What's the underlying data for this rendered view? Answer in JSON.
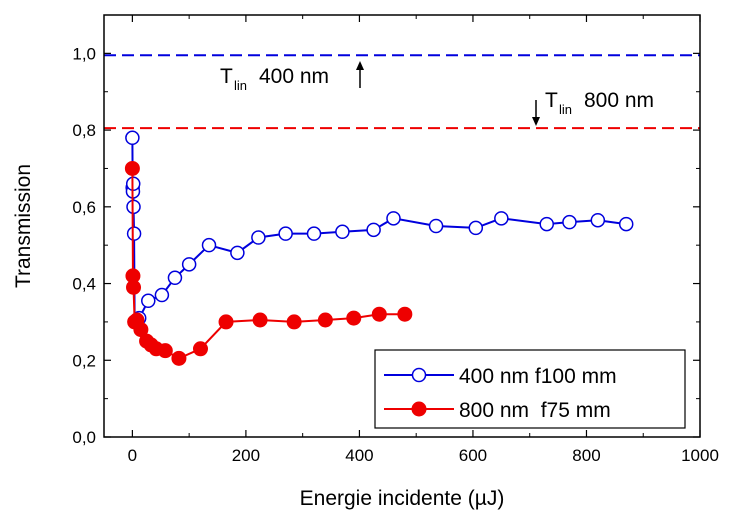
{
  "chart_data": {
    "type": "line",
    "xlabel": "Energie incidente (µJ)",
    "ylabel": "Transmission",
    "xlim": [
      -50,
      1000
    ],
    "ylim": [
      0.0,
      1.1
    ],
    "x_ticks": [
      0,
      200,
      400,
      600,
      800,
      1000
    ],
    "x_tick_labels": [
      "0",
      "200",
      "400",
      "600",
      "800",
      "1000"
    ],
    "y_ticks": [
      0.0,
      0.2,
      0.4,
      0.6,
      0.8,
      1.0
    ],
    "y_tick_labels": [
      "0,0",
      "0,2",
      "0,4",
      "0,6",
      "0,8",
      "1,0"
    ],
    "grid": false,
    "legend_position": "bottom-right",
    "series": [
      {
        "name": "400 nm f100 mm",
        "color": "#0000dd",
        "marker": "open-circle",
        "x": [
          0,
          0.5,
          1,
          1.5,
          2,
          3,
          4,
          12,
          28,
          52,
          75,
          100,
          135,
          185,
          222,
          270,
          320,
          370,
          425,
          460,
          535,
          605,
          650,
          730,
          770,
          820,
          870
        ],
        "y": [
          0.78,
          0.65,
          0.64,
          0.66,
          0.6,
          0.53,
          0.3,
          0.31,
          0.355,
          0.37,
          0.415,
          0.45,
          0.5,
          0.48,
          0.52,
          0.53,
          0.53,
          0.535,
          0.54,
          0.57,
          0.55,
          0.545,
          0.57,
          0.555,
          0.56,
          0.565,
          0.555
        ]
      },
      {
        "name": "800 nm  f75 mm",
        "color": "#ee0000",
        "marker": "filled-circle",
        "x": [
          0,
          1,
          2,
          4,
          8,
          15,
          25,
          33,
          42,
          58,
          82,
          120,
          165,
          225,
          285,
          340,
          390,
          435,
          480
        ],
        "y": [
          0.7,
          0.42,
          0.39,
          0.3,
          0.305,
          0.28,
          0.25,
          0.24,
          0.23,
          0.225,
          0.205,
          0.23,
          0.3,
          0.305,
          0.3,
          0.305,
          0.31,
          0.32,
          0.32
        ]
      }
    ],
    "reference_lines": [
      {
        "y": 0.995,
        "color": "#0000dd",
        "style": "dashed"
      },
      {
        "y": 0.805,
        "color": "#ee0000",
        "style": "dashed"
      }
    ],
    "annotations": [
      {
        "text": "T",
        "sub": "lin",
        "rest": "400 nm",
        "arrow": "up",
        "x": 400,
        "y": 0.93
      },
      {
        "text": "T",
        "sub": "lin",
        "rest": "800 nm",
        "arrow": "down",
        "x": 710,
        "y": 0.87
      }
    ]
  }
}
